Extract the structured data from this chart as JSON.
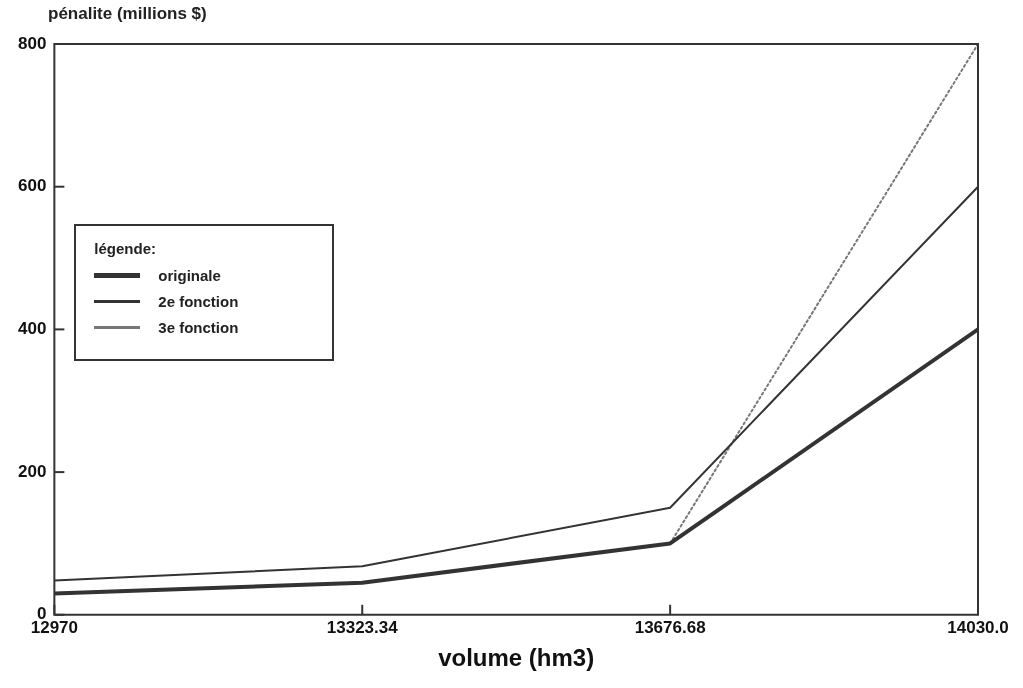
{
  "chart_data": {
    "type": "line",
    "ylabel": "pénalite (millions $)",
    "xlabel": "volume (hm3)",
    "legend_title": "légende:",
    "x": [
      12970,
      13323.34,
      13676.68,
      14030.0
    ],
    "xlim": [
      12970,
      14030.0
    ],
    "xticks": [
      12970,
      13323.34,
      13676.68,
      {
        "value": 14030.0,
        "label": "14030.0"
      }
    ],
    "ylim": [
      0,
      800
    ],
    "yticks": [
      0,
      200,
      400,
      600,
      800
    ],
    "series": [
      {
        "name": "originale",
        "color": "#333333",
        "values": [
          30,
          45,
          100,
          400
        ]
      },
      {
        "name": "2e fonction",
        "color": "#333333",
        "values": [
          48,
          68,
          150,
          600
        ]
      },
      {
        "name": "3e fonction",
        "color": "#777777",
        "values": [
          null,
          null,
          100,
          800
        ],
        "line_style": "dotted"
      }
    ],
    "legend": "left",
    "grid": false,
    "marker": "none"
  }
}
